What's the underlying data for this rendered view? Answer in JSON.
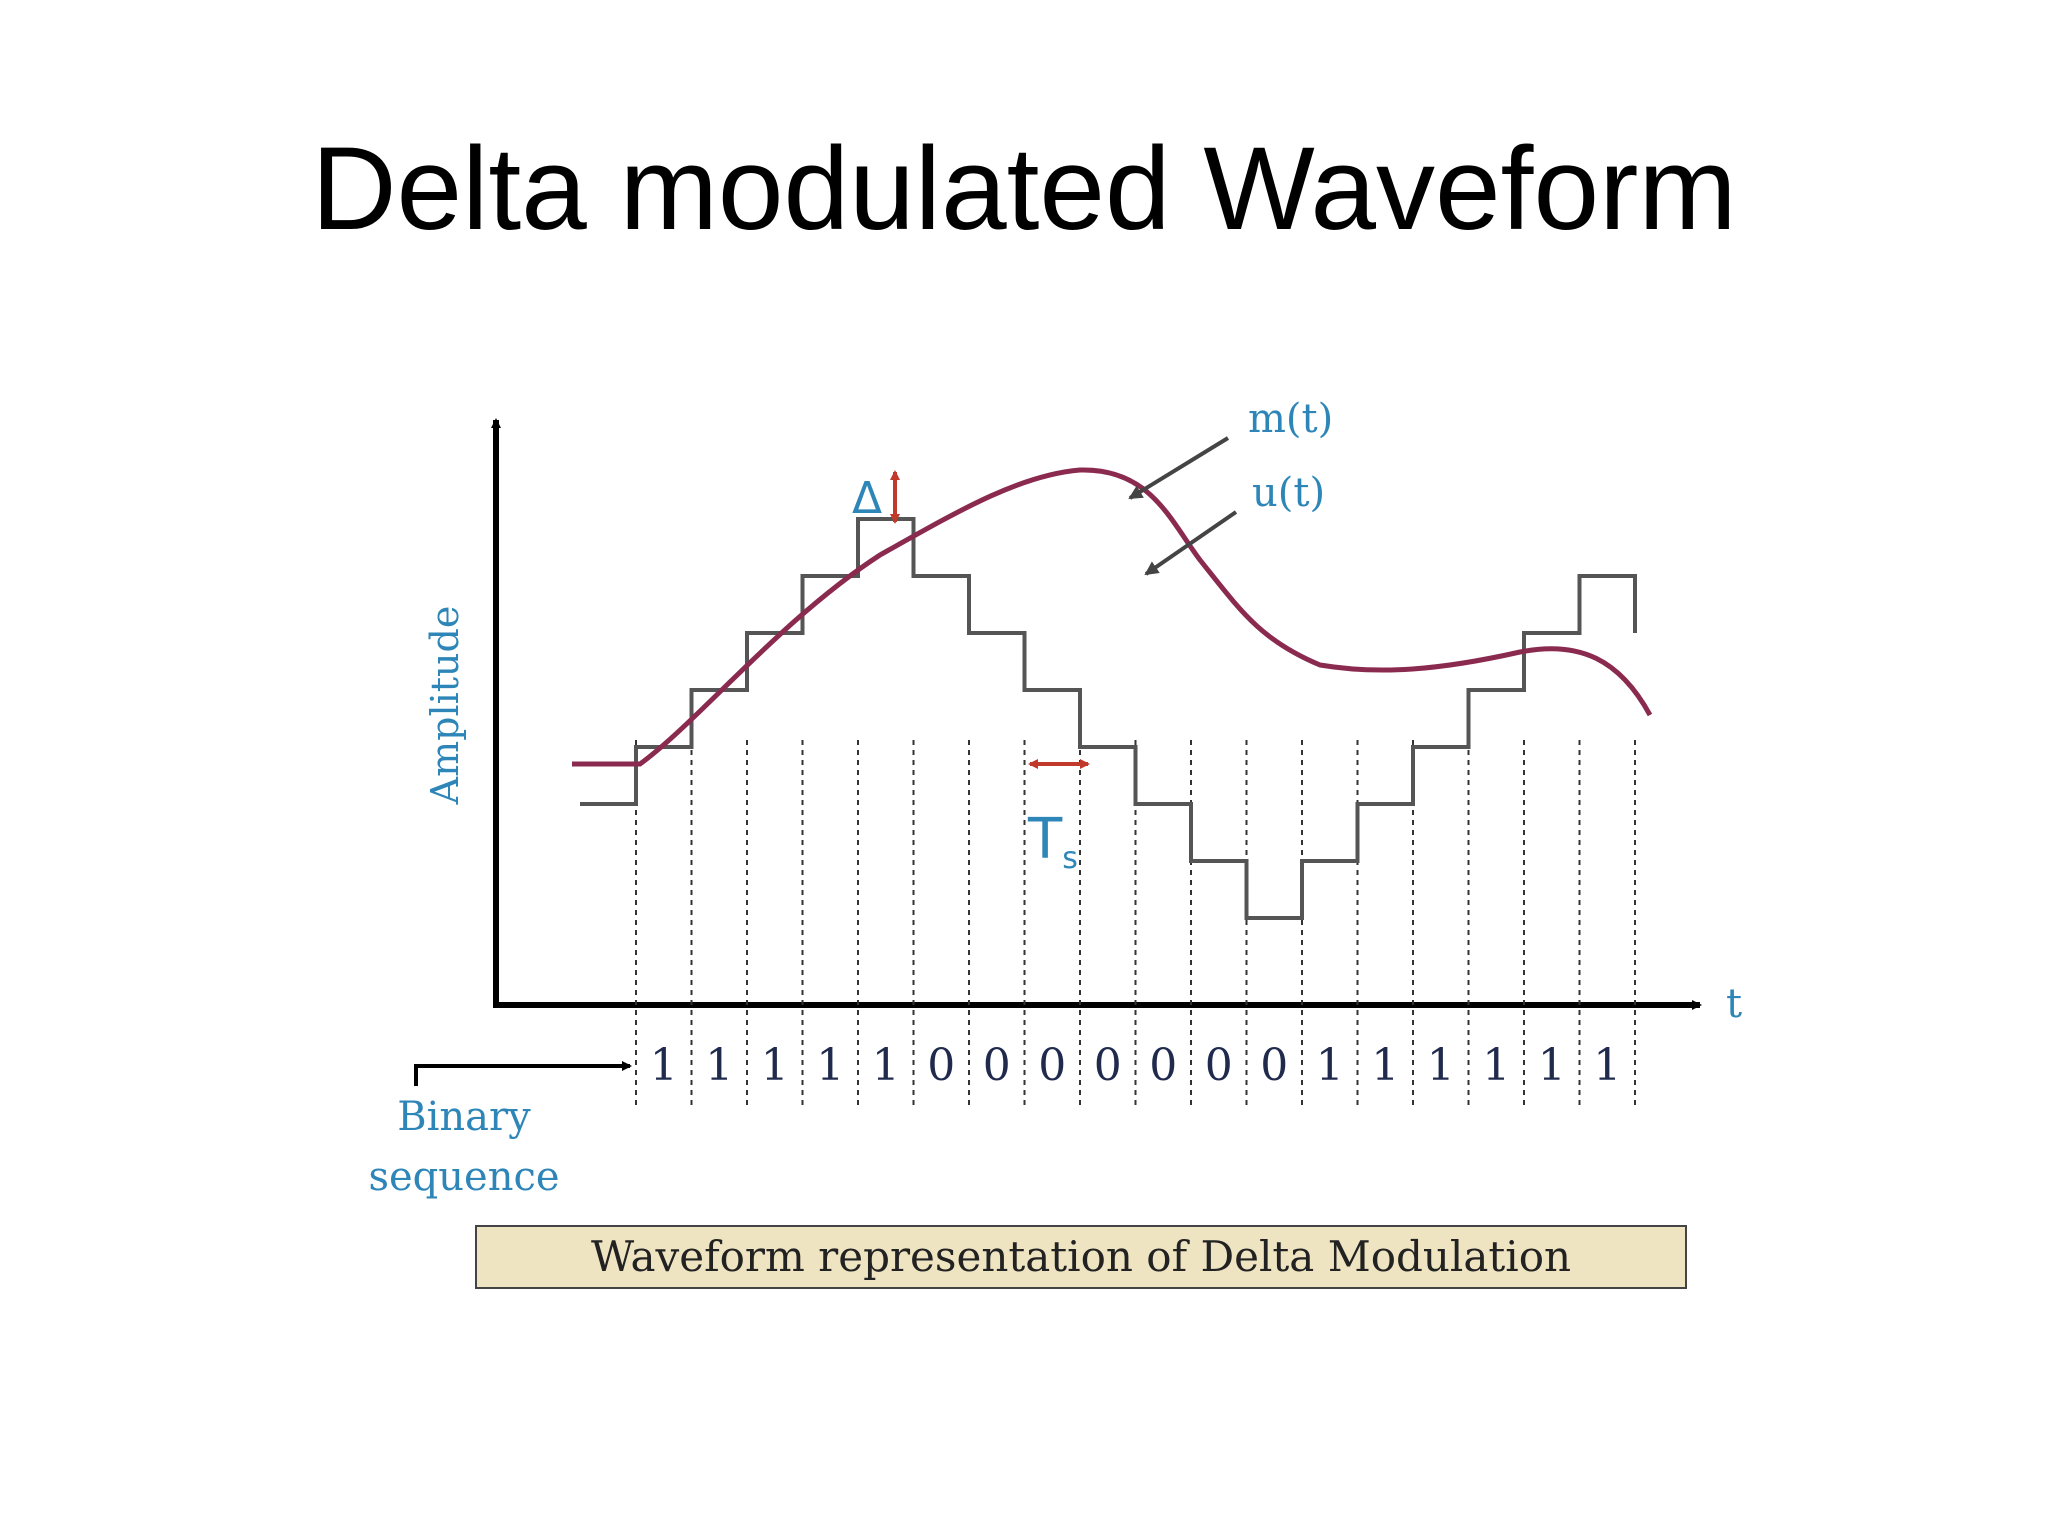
{
  "slide": {
    "title": "Delta modulated Waveform"
  },
  "diagram": {
    "y_axis_label": "Amplitude",
    "x_axis_label": "t",
    "message_label": "m(t)",
    "staircase_label": "u(t)",
    "step_size_label": "Δ",
    "sampling_period_label": "T",
    "sampling_period_subscript": "s",
    "binary_label_line1": "Binary",
    "binary_label_line2": "sequence",
    "caption": "Waveform representation of Delta Modulation",
    "bits": [
      "1",
      "1",
      "1",
      "1",
      "1",
      "0",
      "0",
      "0",
      "0",
      "0",
      "0",
      "0",
      "1",
      "1",
      "1",
      "1",
      "1",
      "1"
    ],
    "colors": {
      "message": "#8b2a4f",
      "staircase": "#555555",
      "label_blue": "#2e86b8",
      "bit_text": "#1f2a4d",
      "marker_red": "#c0392b",
      "caption_bg": "#efe4c2"
    }
  }
}
